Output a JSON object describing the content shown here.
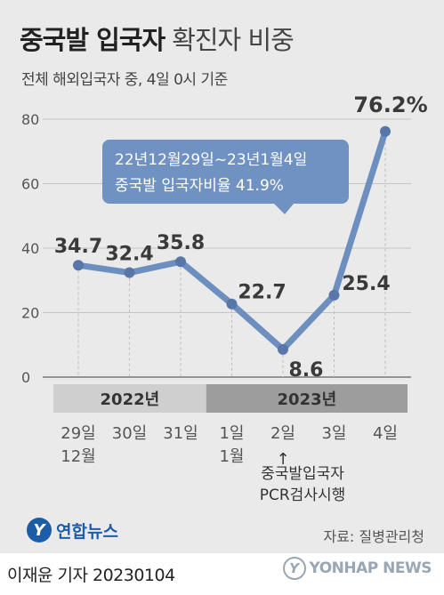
{
  "header": {
    "title_main": "중국발 입국자",
    "title_sub": "확진자 비중",
    "subtitle": "전체 해외입국자 중, 4일 0시 기준"
  },
  "chart_data": {
    "type": "line",
    "x": [
      "29일\n12월",
      "30일",
      "31일",
      "1일\n1월",
      "2일",
      "3일",
      "4일"
    ],
    "values": [
      34.7,
      32.4,
      35.8,
      22.7,
      8.6,
      25.4,
      76.2
    ],
    "value_labels": [
      "34.7",
      "32.4",
      "35.8",
      "22.7",
      "8.6",
      "25.4",
      "76.2%"
    ],
    "ylim": [
      0,
      80
    ],
    "yticks": [
      0,
      20,
      40,
      60,
      80
    ],
    "year_bands": [
      {
        "label": "2022년",
        "from_index": 0,
        "to_index": 2
      },
      {
        "label": "2023년",
        "from_index": 3,
        "to_index": 6
      }
    ],
    "callout": {
      "line1": "22년12월29일~23년1월4일",
      "line2": "중국발 입국자비율 41.9%"
    },
    "annotation": {
      "arrow": "↑",
      "line1": "중국발입국자",
      "line2": "PCR검사시행"
    },
    "line_color": "#6d8fc0",
    "callout_color": "#7092c2",
    "band_2022_color": "#cfcfcf",
    "band_2023_color": "#9d9d9d"
  },
  "footer": {
    "logo_mark": "Y",
    "logo_text": "연합뉴스",
    "source": "자료: 질병관리청",
    "byline": "이재윤 기자  20230104",
    "brand_mark": "Y",
    "brand_text": "YONHAP NEWS"
  }
}
